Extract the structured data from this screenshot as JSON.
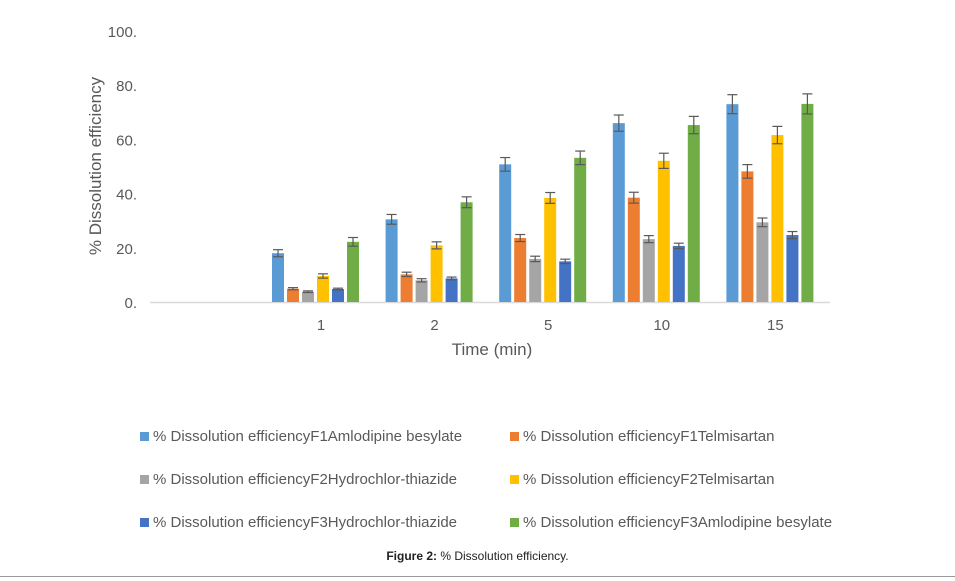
{
  "chart_data": {
    "type": "bar",
    "title": "",
    "xlabel": "Time (min)",
    "ylabel": "% Dissolution efficiency",
    "ylim": [
      0,
      100
    ],
    "yticks": [
      "0.",
      "20.",
      "40.",
      "60.",
      "80.",
      "100."
    ],
    "categories": [
      "1",
      "2",
      "5",
      "10",
      "15"
    ],
    "grid": false,
    "legend_position": "bottom",
    "error_bars": true,
    "series": [
      {
        "name": "% Dissolution efficiencyF1Amlodipine besylate",
        "color": "#5b9bd5",
        "values": [
          18.0,
          30.5,
          50.8,
          66.0,
          73.0
        ],
        "errors": [
          1.3,
          1.8,
          2.5,
          3.0,
          3.5
        ]
      },
      {
        "name": "% Dissolution efficiencyF1Telmisartan",
        "color": "#ed7d31",
        "values": [
          4.9,
          10.2,
          23.6,
          38.5,
          48.2
        ],
        "errors": [
          0.4,
          0.8,
          1.3,
          2.0,
          2.5
        ]
      },
      {
        "name": "% Dissolution efficiencyF2Hydrochlor-thiazide",
        "color": "#a5a5a5",
        "values": [
          3.8,
          8.0,
          15.9,
          23.2,
          29.4
        ],
        "errors": [
          0.3,
          0.6,
          1.0,
          1.3,
          1.6
        ]
      },
      {
        "name": "% Dissolution efficiencyF2Telmisartan",
        "color": "#ffc000",
        "values": [
          9.6,
          20.9,
          38.4,
          52.1,
          61.6
        ],
        "errors": [
          0.8,
          1.3,
          2.0,
          2.8,
          3.2
        ]
      },
      {
        "name": "% Dissolution efficiencyF3Hydrochlor-thiazide",
        "color": "#4472c4",
        "values": [
          4.8,
          8.7,
          15.0,
          20.7,
          24.7
        ],
        "errors": [
          0.3,
          0.5,
          0.8,
          1.0,
          1.3
        ]
      },
      {
        "name": "% Dissolution efficiencyF3Amlodipine besylate",
        "color": "#70ad47",
        "values": [
          22.2,
          36.8,
          53.2,
          65.3,
          73.1
        ],
        "errors": [
          1.6,
          2.0,
          2.5,
          3.2,
          3.7
        ]
      }
    ]
  },
  "caption": {
    "label": "Figure 2:",
    "text": " % Dissolution efficiency."
  }
}
